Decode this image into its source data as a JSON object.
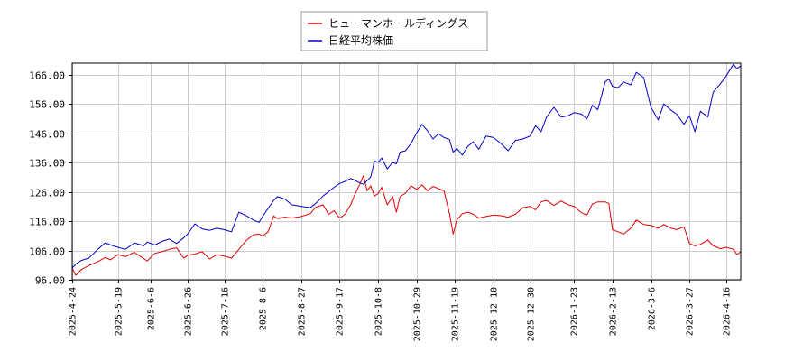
{
  "chart_data": {
    "type": "line",
    "title": "",
    "xlabel": "",
    "ylabel": "",
    "ylim": [
      96,
      170
    ],
    "xlim": [
      "2025-04-24",
      "2026-04-24"
    ],
    "grid": true,
    "legend_position": "top-center",
    "y_ticks": [
      "96.00",
      "106.00",
      "116.00",
      "126.00",
      "136.00",
      "146.00",
      "156.00",
      "166.00"
    ],
    "x_ticks": [
      "2025-4-24",
      "2025-5-19",
      "2025-6-6",
      "2025-6-26",
      "2025-7-16",
      "2025-8-6",
      "2025-8-27",
      "2025-9-17",
      "2025-10-8",
      "2025-10-29",
      "2025-11-19",
      "2025-12-10",
      "2025-12-30",
      "2026-1-23",
      "2026-2-13",
      "2026-3-6",
      "2026-3-27",
      "2026-4-16"
    ],
    "series": [
      {
        "name": "ヒューマンホールディングス",
        "color": "#e00000",
        "points": [
          [
            "2025-04-24",
            100.0
          ],
          [
            "2025-04-26",
            97.5
          ],
          [
            "2025-04-29",
            99.5
          ],
          [
            "2025-05-03",
            100.8
          ],
          [
            "2025-05-08",
            102.2
          ],
          [
            "2025-05-12",
            103.6
          ],
          [
            "2025-05-15",
            102.8
          ],
          [
            "2025-05-19",
            104.6
          ],
          [
            "2025-05-23",
            103.9
          ],
          [
            "2025-05-28",
            105.4
          ],
          [
            "2025-06-02",
            103.2
          ],
          [
            "2025-06-04",
            102.4
          ],
          [
            "2025-06-08",
            105.0
          ],
          [
            "2025-06-12",
            105.6
          ],
          [
            "2025-06-16",
            106.4
          ],
          [
            "2025-06-20",
            106.9
          ],
          [
            "2025-06-24",
            103.4
          ],
          [
            "2025-06-26",
            104.4
          ],
          [
            "2025-06-30",
            104.8
          ],
          [
            "2025-07-04",
            105.6
          ],
          [
            "2025-07-08",
            103.1
          ],
          [
            "2025-07-12",
            104.6
          ],
          [
            "2025-07-16",
            104.1
          ],
          [
            "2025-07-20",
            103.4
          ],
          [
            "2025-07-24",
            106.4
          ],
          [
            "2025-07-28",
            109.4
          ],
          [
            "2025-08-01",
            111.4
          ],
          [
            "2025-08-04",
            111.6
          ],
          [
            "2025-08-06",
            111.0
          ],
          [
            "2025-08-09",
            112.4
          ],
          [
            "2025-08-12",
            117.8
          ],
          [
            "2025-08-14",
            116.9
          ],
          [
            "2025-08-18",
            117.4
          ],
          [
            "2025-08-22",
            117.1
          ],
          [
            "2025-08-27",
            117.6
          ],
          [
            "2025-09-01",
            118.6
          ],
          [
            "2025-09-04",
            120.8
          ],
          [
            "2025-09-08",
            121.6
          ],
          [
            "2025-09-11",
            118.4
          ],
          [
            "2025-09-14",
            119.6
          ],
          [
            "2025-09-17",
            117.1
          ],
          [
            "2025-09-20",
            118.4
          ],
          [
            "2025-09-23",
            121.6
          ],
          [
            "2025-09-25",
            124.6
          ],
          [
            "2025-09-28",
            128.6
          ],
          [
            "2025-09-30",
            131.6
          ],
          [
            "2025-10-02",
            126.4
          ],
          [
            "2025-10-04",
            128.1
          ],
          [
            "2025-10-06",
            124.6
          ],
          [
            "2025-10-08",
            125.4
          ],
          [
            "2025-10-10",
            127.6
          ],
          [
            "2025-10-13",
            121.6
          ],
          [
            "2025-10-16",
            124.4
          ],
          [
            "2025-10-18",
            119.1
          ],
          [
            "2025-10-20",
            124.4
          ],
          [
            "2025-10-23",
            125.6
          ],
          [
            "2025-10-26",
            128.1
          ],
          [
            "2025-10-29",
            126.9
          ],
          [
            "2025-11-01",
            128.4
          ],
          [
            "2025-11-04",
            126.4
          ],
          [
            "2025-11-07",
            127.9
          ],
          [
            "2025-11-10",
            127.1
          ],
          [
            "2025-11-13",
            126.4
          ],
          [
            "2025-11-16",
            118.6
          ],
          [
            "2025-11-18",
            111.6
          ],
          [
            "2025-11-20",
            116.4
          ],
          [
            "2025-11-23",
            118.6
          ],
          [
            "2025-11-26",
            119.1
          ],
          [
            "2025-11-29",
            118.4
          ],
          [
            "2025-12-02",
            117.1
          ],
          [
            "2025-12-06",
            117.6
          ],
          [
            "2025-12-10",
            118.1
          ],
          [
            "2025-12-14",
            117.9
          ],
          [
            "2025-12-18",
            117.4
          ],
          [
            "2025-12-22",
            118.4
          ],
          [
            "2025-12-26",
            120.6
          ],
          [
            "2025-12-30",
            121.1
          ],
          [
            "2026-01-02",
            119.9
          ],
          [
            "2026-01-05",
            122.6
          ],
          [
            "2026-01-08",
            123.1
          ],
          [
            "2026-01-12",
            121.4
          ],
          [
            "2026-01-16",
            122.9
          ],
          [
            "2026-01-20",
            121.6
          ],
          [
            "2026-01-23",
            121.1
          ],
          [
            "2026-01-27",
            118.9
          ],
          [
            "2026-01-30",
            118.1
          ],
          [
            "2026-02-02",
            121.9
          ],
          [
            "2026-02-05",
            122.6
          ],
          [
            "2026-02-09",
            122.6
          ],
          [
            "2026-02-11",
            122.1
          ],
          [
            "2026-02-13",
            113.1
          ],
          [
            "2026-02-16",
            112.4
          ],
          [
            "2026-02-19",
            111.6
          ],
          [
            "2026-02-23",
            113.6
          ],
          [
            "2026-02-26",
            116.4
          ],
          [
            "2026-03-02",
            114.9
          ],
          [
            "2026-03-06",
            114.6
          ],
          [
            "2026-03-10",
            113.6
          ],
          [
            "2026-03-13",
            114.9
          ],
          [
            "2026-03-17",
            113.6
          ],
          [
            "2026-03-20",
            113.1
          ],
          [
            "2026-03-24",
            114.1
          ],
          [
            "2026-03-27",
            108.4
          ],
          [
            "2026-03-30",
            107.6
          ],
          [
            "2026-04-02",
            108.1
          ],
          [
            "2026-04-06",
            109.6
          ],
          [
            "2026-04-09",
            107.6
          ],
          [
            "2026-04-13",
            106.6
          ],
          [
            "2026-04-16",
            107.1
          ],
          [
            "2026-04-20",
            106.4
          ],
          [
            "2026-04-22",
            104.6
          ],
          [
            "2026-04-24",
            105.6
          ]
        ]
      },
      {
        "name": "日経平均株価",
        "color": "#0000cc",
        "points": [
          [
            "2025-04-24",
            100.0
          ],
          [
            "2025-04-26",
            101.4
          ],
          [
            "2025-04-29",
            102.6
          ],
          [
            "2025-05-03",
            103.4
          ],
          [
            "2025-05-08",
            106.4
          ],
          [
            "2025-05-12",
            108.6
          ],
          [
            "2025-05-15",
            107.9
          ],
          [
            "2025-05-19",
            107.1
          ],
          [
            "2025-05-23",
            106.4
          ],
          [
            "2025-05-28",
            108.6
          ],
          [
            "2025-06-02",
            107.6
          ],
          [
            "2025-06-04",
            108.9
          ],
          [
            "2025-06-08",
            107.9
          ],
          [
            "2025-06-12",
            109.1
          ],
          [
            "2025-06-16",
            109.9
          ],
          [
            "2025-06-20",
            108.4
          ],
          [
            "2025-06-24",
            110.4
          ],
          [
            "2025-06-26",
            111.6
          ],
          [
            "2025-06-30",
            115.1
          ],
          [
            "2025-07-04",
            113.4
          ],
          [
            "2025-07-08",
            112.9
          ],
          [
            "2025-07-12",
            113.6
          ],
          [
            "2025-07-16",
            113.1
          ],
          [
            "2025-07-20",
            112.4
          ],
          [
            "2025-07-24",
            119.1
          ],
          [
            "2025-07-28",
            117.9
          ],
          [
            "2025-08-01",
            116.4
          ],
          [
            "2025-08-04",
            115.6
          ],
          [
            "2025-08-06",
            117.6
          ],
          [
            "2025-08-09",
            120.4
          ],
          [
            "2025-08-12",
            123.1
          ],
          [
            "2025-08-14",
            124.4
          ],
          [
            "2025-08-18",
            123.6
          ],
          [
            "2025-08-22",
            121.6
          ],
          [
            "2025-08-27",
            121.1
          ],
          [
            "2025-09-01",
            120.6
          ],
          [
            "2025-09-04",
            122.1
          ],
          [
            "2025-09-08",
            124.6
          ],
          [
            "2025-09-11",
            126.1
          ],
          [
            "2025-09-14",
            127.6
          ],
          [
            "2025-09-17",
            128.9
          ],
          [
            "2025-09-20",
            129.6
          ],
          [
            "2025-09-23",
            130.6
          ],
          [
            "2025-09-25",
            130.1
          ],
          [
            "2025-09-28",
            129.1
          ],
          [
            "2025-09-30",
            128.6
          ],
          [
            "2025-10-02",
            129.9
          ],
          [
            "2025-10-04",
            131.1
          ],
          [
            "2025-10-06",
            136.6
          ],
          [
            "2025-10-08",
            136.1
          ],
          [
            "2025-10-10",
            137.6
          ],
          [
            "2025-10-13",
            133.9
          ],
          [
            "2025-10-16",
            136.1
          ],
          [
            "2025-10-18",
            135.6
          ],
          [
            "2025-10-20",
            139.6
          ],
          [
            "2025-10-23",
            140.1
          ],
          [
            "2025-10-26",
            142.6
          ],
          [
            "2025-10-29",
            146.1
          ],
          [
            "2025-11-01",
            149.1
          ],
          [
            "2025-11-04",
            146.9
          ],
          [
            "2025-11-07",
            144.1
          ],
          [
            "2025-11-10",
            145.9
          ],
          [
            "2025-11-13",
            144.6
          ],
          [
            "2025-11-16",
            143.9
          ],
          [
            "2025-11-18",
            139.6
          ],
          [
            "2025-11-20",
            140.9
          ],
          [
            "2025-11-23",
            138.6
          ],
          [
            "2025-11-26",
            141.6
          ],
          [
            "2025-11-29",
            143.1
          ],
          [
            "2025-12-02",
            140.6
          ],
          [
            "2025-12-06",
            145.1
          ],
          [
            "2025-12-10",
            144.6
          ],
          [
            "2025-12-14",
            142.6
          ],
          [
            "2025-12-18",
            140.1
          ],
          [
            "2025-12-22",
            143.6
          ],
          [
            "2025-12-26",
            144.1
          ],
          [
            "2025-12-30",
            145.1
          ],
          [
            "2026-01-02",
            148.6
          ],
          [
            "2026-01-05",
            146.6
          ],
          [
            "2026-01-08",
            151.6
          ],
          [
            "2026-01-12",
            154.9
          ],
          [
            "2026-01-16",
            151.6
          ],
          [
            "2026-01-20",
            152.1
          ],
          [
            "2026-01-23",
            153.1
          ],
          [
            "2026-01-27",
            152.6
          ],
          [
            "2026-01-30",
            150.9
          ],
          [
            "2026-02-02",
            155.6
          ],
          [
            "2026-02-05",
            154.1
          ],
          [
            "2026-02-09",
            163.6
          ],
          [
            "2026-02-11",
            164.6
          ],
          [
            "2026-02-13",
            162.1
          ],
          [
            "2026-02-16",
            161.6
          ],
          [
            "2026-02-19",
            163.6
          ],
          [
            "2026-02-23",
            162.6
          ],
          [
            "2026-02-26",
            166.9
          ],
          [
            "2026-03-02",
            165.1
          ],
          [
            "2026-03-06",
            154.9
          ],
          [
            "2026-03-10",
            150.6
          ],
          [
            "2026-03-13",
            156.1
          ],
          [
            "2026-03-17",
            153.9
          ],
          [
            "2026-03-20",
            152.6
          ],
          [
            "2026-03-24",
            149.1
          ],
          [
            "2026-03-27",
            152.1
          ],
          [
            "2026-03-30",
            146.6
          ],
          [
            "2026-04-02",
            153.6
          ],
          [
            "2026-04-06",
            151.6
          ],
          [
            "2026-04-09",
            160.1
          ],
          [
            "2026-04-13",
            163.1
          ],
          [
            "2026-04-16",
            165.6
          ],
          [
            "2026-04-20",
            169.6
          ],
          [
            "2026-04-22",
            168.1
          ],
          [
            "2026-04-24",
            169.1
          ]
        ]
      }
    ]
  }
}
